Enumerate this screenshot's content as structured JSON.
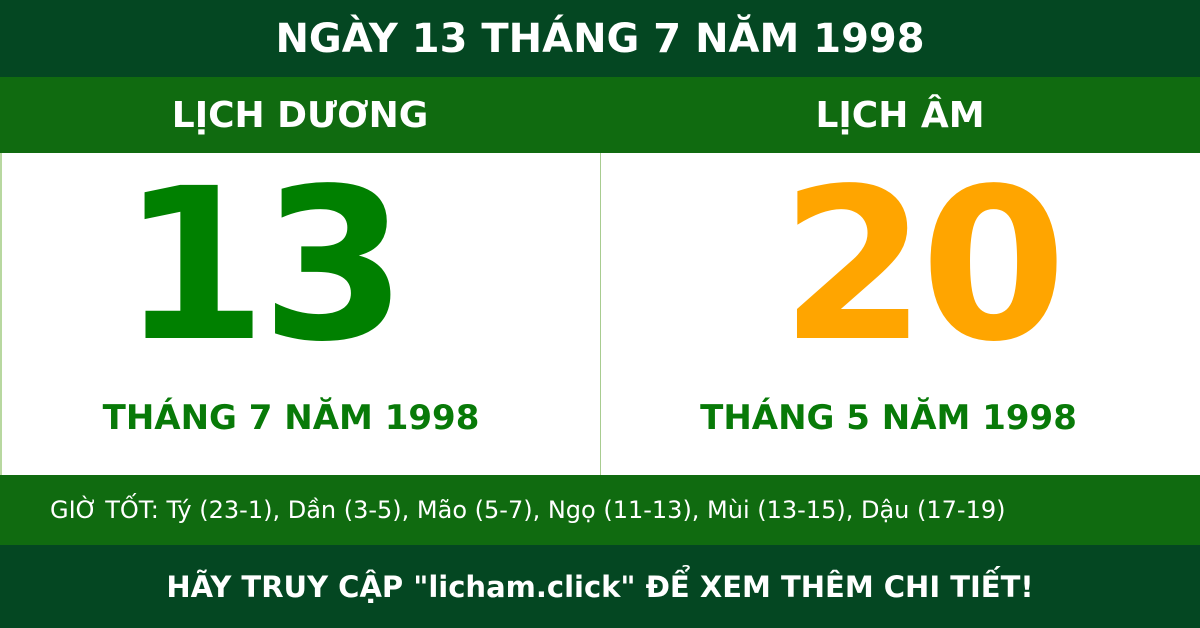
{
  "title": "NGÀY 13 THÁNG 7 NĂM 1998",
  "solar": {
    "label": "LỊCH DƯƠNG",
    "day": "13",
    "month_year": "THÁNG 7 NĂM 1998"
  },
  "lunar": {
    "label": "LỊCH ÂM",
    "day": "20",
    "month_year": "THÁNG 5 NĂM 1998"
  },
  "good_hours": "GIỜ TỐT: Tý (23-1), Dần (3-5), Mão (5-7), Ngọ (11-13), Mùi (13-15), Dậu (17-19)",
  "footer": "HÃY TRUY CẬP \"licham.click\" ĐỂ XEM THÊM CHI TIẾT!",
  "colors": {
    "dark_green": "#044722",
    "green": "#106b10",
    "solar_day": "#008000",
    "lunar_day": "#ffa500"
  }
}
